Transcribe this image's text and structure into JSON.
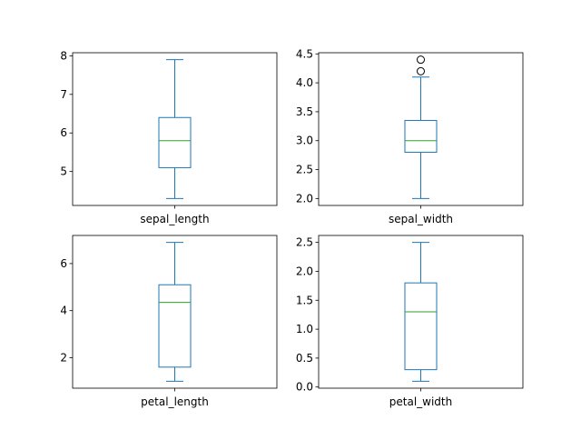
{
  "chart_data": [
    {
      "type": "box",
      "category": "sepal_length",
      "whisker_low": 4.3,
      "q1": 5.1,
      "median": 5.8,
      "q3": 6.4,
      "whisker_high": 7.9,
      "outliers": [],
      "ylim": [
        4.12,
        8.08
      ],
      "yticks": [
        5,
        6,
        7,
        8
      ],
      "ytick_labels": [
        "5",
        "6",
        "7",
        "8"
      ]
    },
    {
      "type": "box",
      "category": "sepal_width",
      "whisker_low": 2.0,
      "q1": 2.8,
      "median": 3.0,
      "q3": 3.35,
      "whisker_high": 4.1,
      "outliers": [
        4.2,
        4.4
      ],
      "ylim": [
        1.88,
        4.52
      ],
      "yticks": [
        2.0,
        2.5,
        3.0,
        3.5,
        4.0,
        4.5
      ],
      "ytick_labels": [
        "2.0",
        "2.5",
        "3.0",
        "3.5",
        "4.0",
        "4.5"
      ]
    },
    {
      "type": "box",
      "category": "petal_length",
      "whisker_low": 1.0,
      "q1": 1.6,
      "median": 4.35,
      "q3": 5.1,
      "whisker_high": 6.9,
      "outliers": [],
      "ylim": [
        0.705,
        7.195
      ],
      "yticks": [
        2,
        4,
        6
      ],
      "ytick_labels": [
        "2",
        "4",
        "6"
      ]
    },
    {
      "type": "box",
      "category": "petal_width",
      "whisker_low": 0.1,
      "q1": 0.3,
      "median": 1.3,
      "q3": 1.8,
      "whisker_high": 2.5,
      "outliers": [],
      "ylim": [
        -0.02,
        2.62
      ],
      "yticks": [
        0.0,
        0.5,
        1.0,
        1.5,
        2.0,
        2.5
      ],
      "ytick_labels": [
        "0.0",
        "0.5",
        "1.0",
        "1.5",
        "2.0",
        "2.5"
      ]
    }
  ],
  "colors": {
    "box": "#1f77b4",
    "median": "#2ca02c",
    "outlier": "#000000"
  }
}
